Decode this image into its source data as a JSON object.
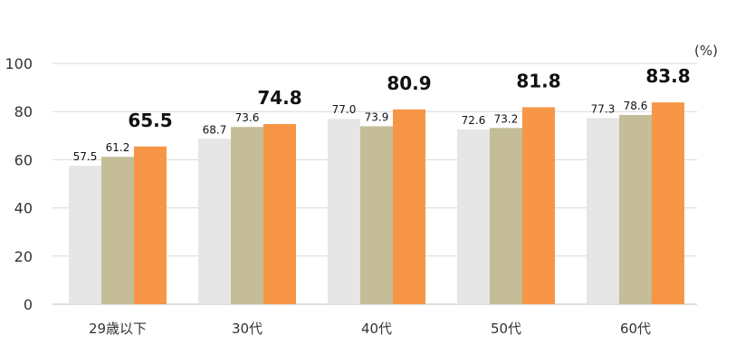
{
  "chart_data": {
    "type": "bar",
    "unit_label": "(%)",
    "categories": [
      "29歳以下",
      "30代",
      "40代",
      "50代",
      "60代"
    ],
    "series": [
      {
        "values": [
          57.5,
          68.7,
          77.0,
          72.6,
          77.3
        ],
        "labels": [
          "57.5",
          "68.7",
          "77.0",
          "72.6",
          "77.3"
        ],
        "color": "#e6e6e6"
      },
      {
        "values": [
          61.2,
          73.6,
          73.9,
          73.2,
          78.6
        ],
        "labels": [
          "61.2",
          "73.6",
          "73.9",
          "73.2",
          "78.6"
        ],
        "color": "#c4bd97"
      },
      {
        "values": [
          65.5,
          74.8,
          80.9,
          81.8,
          83.8
        ],
        "labels": [
          "65.5",
          "74.8",
          "80.9",
          "81.8",
          "83.8"
        ],
        "color": "#f79646",
        "emphasized": true
      }
    ],
    "ylim": [
      0,
      100
    ],
    "yticks": [
      "0",
      "20",
      "40",
      "60",
      "80",
      "100"
    ],
    "grid": true,
    "legend": "none"
  }
}
